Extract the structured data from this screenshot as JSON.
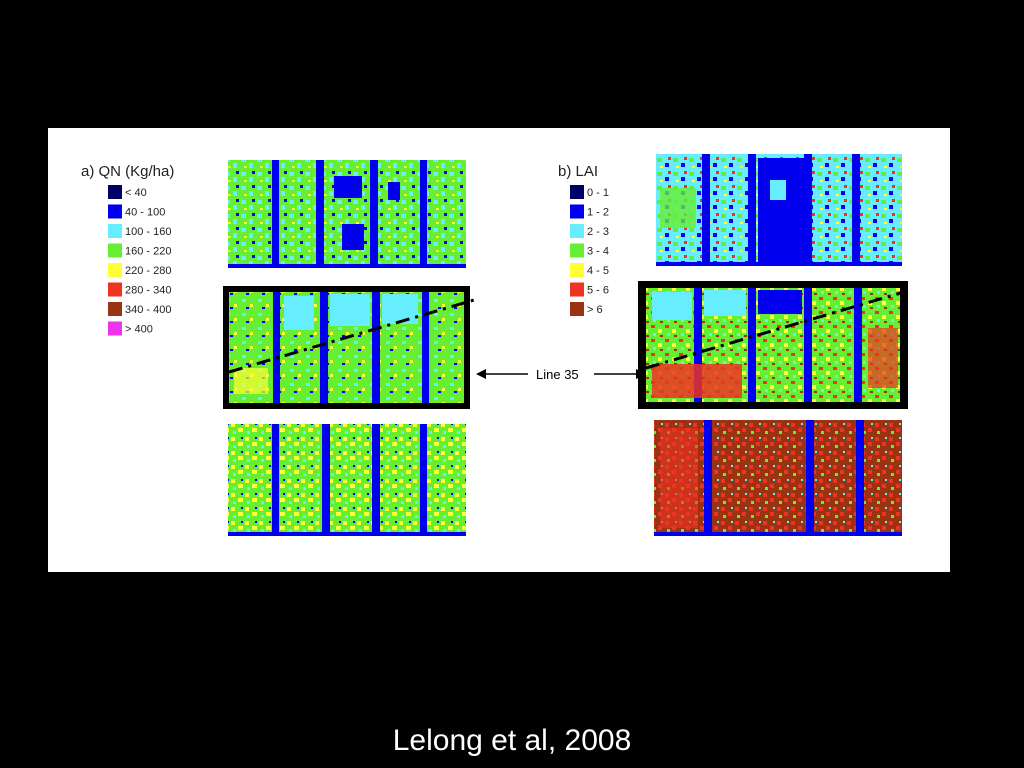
{
  "caption": "Lelong et al, 2008",
  "annotation": {
    "label": "Line 35"
  },
  "panel_a": {
    "title": "a) QN (Kg/ha)",
    "legend": [
      {
        "label": "< 40",
        "color": "#000066"
      },
      {
        "label": "40 - 100",
        "color": "#0000ee"
      },
      {
        "label": "100 - 160",
        "color": "#66eeff"
      },
      {
        "label": "160 - 220",
        "color": "#66ee33"
      },
      {
        "label": "220 - 280",
        "color": "#ffff33"
      },
      {
        "label": "280 - 340",
        "color": "#ee3322"
      },
      {
        "label": "340 - 400",
        "color": "#993311"
      },
      {
        "label": "> 400",
        "color": "#ee33ee"
      }
    ]
  },
  "panel_b": {
    "title": "b) LAI",
    "legend": [
      {
        "label": "0 - 1",
        "color": "#000066"
      },
      {
        "label": "1 - 2",
        "color": "#0000ee"
      },
      {
        "label": "2 - 3",
        "color": "#66eeff"
      },
      {
        "label": "3 - 4",
        "color": "#66ee33"
      },
      {
        "label": "4 - 5",
        "color": "#ffff33"
      },
      {
        "label": "5 - 6",
        "color": "#ee3322"
      },
      {
        "label": "> 6",
        "color": "#993311"
      }
    ]
  }
}
